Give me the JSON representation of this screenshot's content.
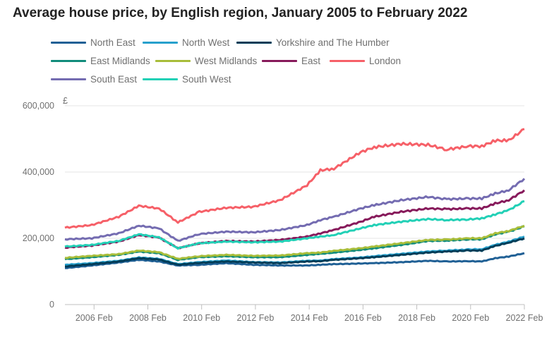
{
  "chart_data": {
    "type": "line",
    "title": "Average house price, by English region, January 2005 to February 2022",
    "ylabel": "£",
    "xlabel": "",
    "ylim": [
      0,
      600000
    ],
    "xlim": [
      2005.0,
      2022.083
    ],
    "y_ticks": [
      0,
      200000,
      400000,
      600000
    ],
    "y_tick_labels": [
      "0",
      "200,000",
      "400,000",
      "600,000"
    ],
    "x_ticks": [
      2006.083,
      2008.083,
      2010.083,
      2012.083,
      2014.083,
      2016.083,
      2018.083,
      2020.083,
      2022.083
    ],
    "x_tick_labels": [
      "2006 Feb",
      "2008 Feb",
      "2010 Feb",
      "2012 Feb",
      "2014 Feb",
      "2016 Feb",
      "2018 Feb",
      "2020 Feb",
      "2022 Feb"
    ],
    "grid": true,
    "legend_placement": "top",
    "x": [
      2005.0,
      2006.0,
      2007.0,
      2007.75,
      2008.5,
      2009.2,
      2010.0,
      2011.0,
      2012.0,
      2013.0,
      2014.0,
      2014.5,
      2015.0,
      2016.0,
      2016.5,
      2017.5,
      2018.5,
      2019.2,
      2020.0,
      2020.5,
      2021.0,
      2021.5,
      2022.083
    ],
    "series": [
      {
        "name": "North East",
        "color": "#206095",
        "values": [
          110000,
          118000,
          127000,
          135000,
          130000,
          118000,
          120000,
          125000,
          120000,
          118000,
          118000,
          120000,
          122000,
          124000,
          125000,
          128000,
          132000,
          130000,
          131000,
          130000,
          140000,
          145000,
          155000
        ]
      },
      {
        "name": "North West",
        "color": "#27a0cc",
        "values": [
          120000,
          125000,
          132000,
          142000,
          138000,
          122000,
          128000,
          133000,
          128000,
          127000,
          132000,
          133000,
          137000,
          142000,
          146000,
          153000,
          160000,
          163000,
          166000,
          167000,
          180000,
          190000,
          205000
        ]
      },
      {
        "name": "Yorkshire and The Humber",
        "color": "#003c57",
        "values": [
          115000,
          122000,
          130000,
          140000,
          136000,
          120000,
          126000,
          130000,
          127000,
          125000,
          130000,
          131000,
          135000,
          140000,
          143000,
          150000,
          157000,
          160000,
          163000,
          163000,
          177000,
          187000,
          200000
        ]
      },
      {
        "name": "East Midlands",
        "color": "#118c7b",
        "values": [
          137000,
          143000,
          150000,
          160000,
          155000,
          135000,
          143000,
          146000,
          143000,
          143000,
          150000,
          153000,
          157000,
          165000,
          170000,
          180000,
          192000,
          193000,
          197000,
          197000,
          212000,
          220000,
          236000
        ]
      },
      {
        "name": "West Midlands",
        "color": "#a8bd3a",
        "values": [
          141000,
          147000,
          152000,
          163000,
          158000,
          138000,
          146000,
          150000,
          147000,
          148000,
          155000,
          157000,
          162000,
          170000,
          175000,
          185000,
          195000,
          196000,
          200000,
          200000,
          215000,
          222000,
          238000
        ]
      },
      {
        "name": "East",
        "color": "#871a5b",
        "values": [
          172000,
          178000,
          190000,
          210000,
          202000,
          170000,
          185000,
          192000,
          190000,
          195000,
          205000,
          215000,
          225000,
          250000,
          265000,
          280000,
          290000,
          288000,
          290000,
          290000,
          305000,
          315000,
          345000
        ]
      },
      {
        "name": "London",
        "color": "#f66068",
        "values": [
          232000,
          240000,
          265000,
          298000,
          290000,
          248000,
          280000,
          292000,
          295000,
          315000,
          360000,
          405000,
          410000,
          460000,
          475000,
          485000,
          482000,
          468000,
          478000,
          478000,
          495000,
          495000,
          530000
        ]
      },
      {
        "name": "South East",
        "color": "#746cb1",
        "values": [
          197000,
          200000,
          215000,
          238000,
          230000,
          192000,
          213000,
          220000,
          218000,
          225000,
          240000,
          255000,
          265000,
          290000,
          300000,
          315000,
          325000,
          318000,
          320000,
          320000,
          335000,
          345000,
          380000
        ]
      },
      {
        "name": "South West",
        "color": "#22d0b6",
        "values": [
          175000,
          180000,
          192000,
          212000,
          203000,
          170000,
          185000,
          190000,
          188000,
          190000,
          200000,
          205000,
          210000,
          230000,
          240000,
          250000,
          258000,
          255000,
          257000,
          260000,
          272000,
          285000,
          312000
        ]
      }
    ]
  }
}
